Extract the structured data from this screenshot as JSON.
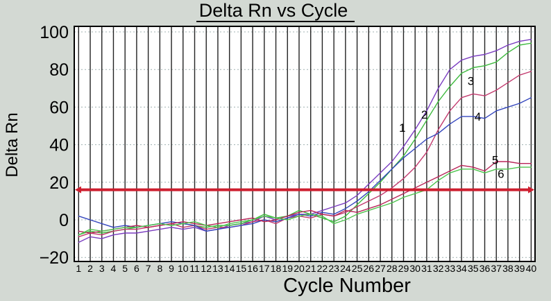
{
  "window": {
    "background": "#d3d9d3",
    "plot_background": "#ffffff",
    "border_color": "#000000"
  },
  "chart_data": {
    "type": "line",
    "title": "Delta Rn vs Cycle",
    "xlabel": "Cycle Number",
    "ylabel": "Delta Rn",
    "x_ticks": [
      1,
      2,
      3,
      4,
      5,
      6,
      7,
      8,
      9,
      10,
      11,
      12,
      13,
      14,
      15,
      16,
      17,
      18,
      19,
      20,
      21,
      22,
      23,
      24,
      25,
      26,
      27,
      28,
      29,
      30,
      31,
      32,
      33,
      34,
      35,
      36,
      37,
      38,
      39,
      40
    ],
    "y_ticks": [
      "100",
      "80",
      "60",
      "40",
      "20",
      "0",
      "-20"
    ],
    "ylim": [
      -22,
      103
    ],
    "grid": {
      "vertical": true,
      "vertical_color": "#222222",
      "horizontal": true,
      "horizontal_style": "dotted",
      "horizontal_color": "#9fb0b0"
    },
    "legend_position": "none",
    "threshold": {
      "value": 16,
      "color": "#cd1f2f",
      "arrows_both_ends": true
    },
    "series": [
      {
        "label": "1",
        "color": "#7a3cc0",
        "label_pos": {
          "cycle": 28.9,
          "value": 49
        },
        "values": [
          -12,
          -9,
          -10,
          -8,
          -7,
          -7,
          -6,
          -5,
          -4,
          -5,
          -4,
          -6,
          -5,
          -3,
          -2,
          -1,
          2,
          0,
          2,
          3,
          3,
          5,
          7,
          9,
          13,
          19,
          25,
          31,
          39,
          48,
          58,
          70,
          80,
          85,
          87,
          88,
          90,
          93,
          95,
          96
        ]
      },
      {
        "label": "2",
        "color": "#3fba3f",
        "label_pos": {
          "cycle": 30.8,
          "value": 56
        },
        "values": [
          -8,
          -6,
          -7,
          -6,
          -5,
          -4,
          -3,
          -2,
          -3,
          -2,
          -3,
          -4,
          -3,
          -3,
          -2,
          0,
          3,
          1,
          2,
          5,
          3,
          1,
          -1,
          2,
          8,
          14,
          20,
          27,
          34,
          43,
          53,
          63,
          71,
          78,
          81,
          82,
          84,
          89,
          93,
          94
        ]
      },
      {
        "label": "3",
        "color": "#c23a6e",
        "label_pos": {
          "cycle": 34.8,
          "value": 74
        },
        "values": [
          -9,
          -7,
          -8,
          -6,
          -5,
          -5,
          -4,
          -3,
          -2,
          -4,
          -3,
          -5,
          -4,
          -4,
          -3,
          -1,
          0,
          -2,
          1,
          2,
          1,
          3,
          2,
          4,
          7,
          10,
          13,
          17,
          22,
          28,
          36,
          48,
          58,
          65,
          67,
          66,
          69,
          73,
          77,
          79
        ]
      },
      {
        "label": "4",
        "color": "#3446bd",
        "label_pos": {
          "cycle": 35.4,
          "value": 55
        },
        "values": [
          2,
          0,
          -2,
          -4,
          -3,
          -4,
          -3,
          -2,
          -1,
          -2,
          -3,
          -6,
          -5,
          -4,
          -3,
          -2,
          0,
          -1,
          1,
          3,
          2,
          4,
          3,
          6,
          10,
          15,
          21,
          27,
          33,
          38,
          43,
          46,
          51,
          55,
          55,
          54,
          58,
          60,
          62,
          65
        ]
      },
      {
        "label": "5",
        "color": "#b82558",
        "label_pos": {
          "cycle": 36.9,
          "value": 32
        },
        "values": [
          -6,
          -7,
          -6,
          -5,
          -4,
          -3,
          -4,
          -3,
          -2,
          -1,
          -2,
          -3,
          -2,
          -1,
          0,
          1,
          -1,
          0,
          2,
          4,
          5,
          3,
          2,
          5,
          4,
          6,
          8,
          11,
          14,
          17,
          20,
          23,
          26,
          29,
          28,
          26,
          31,
          31,
          30,
          30
        ]
      },
      {
        "label": "6",
        "color": "#4fc44f",
        "label_pos": {
          "cycle": 37.4,
          "value": 24.5
        },
        "values": [
          -8,
          -5,
          -6,
          -5,
          -4,
          -4,
          -3,
          -2,
          -3,
          -2,
          -1,
          -3,
          -4,
          -2,
          -1,
          0,
          2,
          1,
          0,
          2,
          3,
          2,
          -2,
          0,
          3,
          5,
          7,
          9,
          12,
          14,
          16,
          21,
          25,
          27,
          27,
          25,
          27,
          27,
          28,
          28
        ]
      }
    ]
  }
}
